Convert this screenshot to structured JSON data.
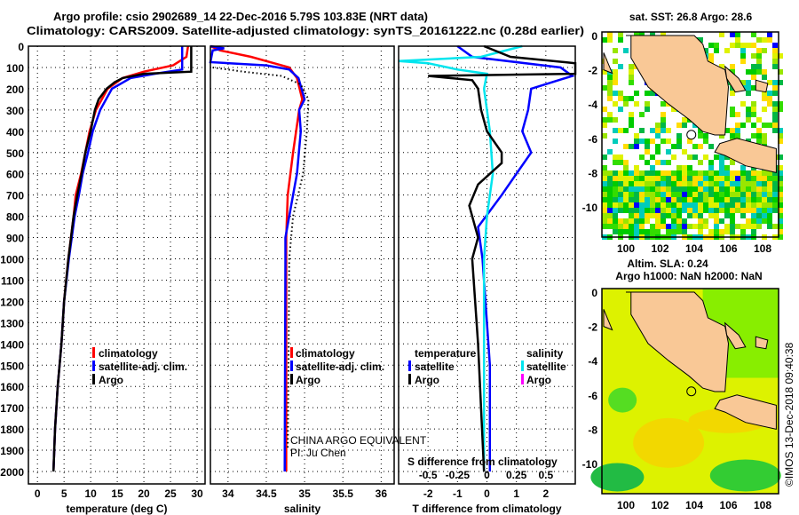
{
  "header": {
    "title_line1": "Argo profile: csio 2902689_14 22-Dec-2016 5.79S 103.83E (NRT data)",
    "title_line2": "Climatology: CARS2009. Satellite-adjusted climatology: synTS_20161222.nc (0.28d earlier)"
  },
  "colors": {
    "climatology": "#ff0000",
    "satellite": "#0000ff",
    "argo": "#000000",
    "sal_satellite": "#00e5ee",
    "sal_argo": "#ff00ff",
    "land": "#f9c896"
  },
  "depth_ticks": [
    "0",
    "100",
    "200",
    "300",
    "400",
    "500",
    "600",
    "700",
    "800",
    "900",
    "1000",
    "1100",
    "1200",
    "1300",
    "1400",
    "1500",
    "1600",
    "1700",
    "1800",
    "1900",
    "2000"
  ],
  "chart_data": [
    {
      "type": "line",
      "xlabel": "temperature (deg C)",
      "ylabel": "depth",
      "xlim": [
        -1.7,
        31.5
      ],
      "ylim": [
        2100,
        0
      ],
      "xticks": [
        "0",
        "5",
        "10",
        "15",
        "20",
        "25",
        "30"
      ],
      "legend": [
        "climatology",
        "satellite-adj. clim.",
        "Argo"
      ],
      "series": [
        {
          "name": "climatology",
          "color": "#ff0000",
          "depth": [
            0,
            50,
            90,
            120,
            150,
            200,
            300,
            400,
            500,
            600,
            700,
            800,
            1000,
            1200,
            1400,
            1600,
            1800,
            2000
          ],
          "values": [
            28.3,
            28,
            25.5,
            20,
            16,
            13.2,
            11,
            9.8,
            9,
            8.2,
            7.2,
            6.8,
            5.8,
            5,
            4.5,
            3.8,
            3.3,
            3
          ]
        },
        {
          "name": "satellite-adj. clim.",
          "color": "#0000ff",
          "depth": [
            0,
            110,
            130,
            150,
            200,
            300,
            400,
            500,
            600,
            700,
            800,
            1000,
            1200,
            1400,
            1600,
            1800,
            2000
          ],
          "values": [
            27.2,
            27.2,
            22,
            17.5,
            14,
            11.8,
            10.4,
            9.5,
            8.5,
            7.8,
            7,
            5.9,
            5,
            4.5,
            3.8,
            3.3,
            3
          ]
        },
        {
          "name": "Argo",
          "color": "#000000",
          "depth": [
            0,
            120,
            130,
            150,
            170,
            200,
            250,
            300,
            400,
            500,
            600,
            700,
            800,
            900,
            1000,
            1200,
            1400,
            1600,
            1800,
            2000
          ],
          "values": [
            28.9,
            28.9,
            20,
            16,
            14.5,
            13,
            11.5,
            10.8,
            10,
            9,
            8.3,
            7.5,
            6.8,
            6.3,
            5.8,
            5,
            4.5,
            3.8,
            3.3,
            3
          ]
        }
      ]
    },
    {
      "type": "line",
      "xlabel": "salinity",
      "xlim": [
        33.77,
        36.17
      ],
      "ylim": [
        2100,
        0
      ],
      "xticks": [
        "34",
        "34.5",
        "35",
        "35.5",
        "36"
      ],
      "legend": [
        "climatology",
        "satellite-adj. clim.",
        "Argo"
      ],
      "annotation_line1": "CHINA ARGO EQUIVALENT",
      "annotation_line2": "PI: Ju Chen",
      "series": [
        {
          "name": "climatology",
          "color": "#ff0000",
          "depth": [
            0,
            20,
            50,
            80,
            100,
            150,
            250,
            300,
            500,
            700,
            900,
            1000,
            2000
          ],
          "values": [
            33.77,
            33.9,
            34.3,
            34.6,
            34.8,
            34.9,
            34.97,
            34.93,
            34.85,
            34.78,
            34.76,
            34.76,
            34.76
          ]
        },
        {
          "name": "satellite-adj. clim.",
          "color": "#0000ff",
          "depth": [
            0,
            10,
            20,
            75,
            90,
            110,
            150,
            250,
            300,
            400,
            600,
            700,
            900,
            1000,
            2000
          ],
          "values": [
            33.77,
            33.95,
            33.8,
            33.77,
            34.5,
            34.8,
            34.92,
            35,
            34.93,
            34.95,
            34.9,
            34.85,
            34.75,
            34.75,
            34.74
          ]
        },
        {
          "name": "Argo",
          "color": "#000000",
          "dashed": true,
          "depth": [
            100,
            120,
            140,
            180,
            250,
            400,
            600,
            800,
            1000,
            1500,
            1900
          ],
          "values": [
            33.8,
            34.2,
            34.7,
            34.95,
            35.05,
            35.03,
            34.98,
            34.85,
            34.8,
            34.79,
            34.78
          ]
        }
      ]
    },
    {
      "type": "line",
      "xlabel": "T difference from climatology",
      "xlabel2": "S difference from climatology",
      "xlim": [
        -3,
        3
      ],
      "ylim": [
        2100,
        0
      ],
      "xticks": [
        "-2",
        "-1",
        "0",
        "1",
        "2"
      ],
      "xticks_s": [
        "-0.5",
        "-0.25",
        "0",
        "0.25",
        "0.5"
      ],
      "legend_t_title": "temperature",
      "legend_s_title": "salinity",
      "legend": [
        "satellite",
        "Argo"
      ],
      "series": [
        {
          "name": "T satellite",
          "color": "#0000ff",
          "depth": [
            0,
            50,
            100,
            140,
            200,
            300,
            400,
            500,
            600,
            700,
            850,
            1000,
            1500,
            2000
          ],
          "values": [
            -1,
            -0.5,
            2.5,
            2.9,
            1.5,
            1.4,
            1.2,
            1.5,
            1.0,
            0.5,
            -0.3,
            -0.15,
            0.1,
            0.1
          ]
        },
        {
          "name": "S satellite",
          "color": "#00e5ee",
          "depth": [
            0,
            50,
            70,
            80,
            110,
            130,
            200,
            400,
            600,
            800,
            1000,
            2000
          ],
          "values": [
            1.2,
            -0.2,
            -3,
            -2,
            -1,
            0,
            -0.1,
            0.1,
            0.2,
            0,
            -0.1,
            -0.1
          ]
        },
        {
          "name": "T Argo",
          "color": "#000000",
          "depth": [
            0,
            50,
            80,
            130,
            140,
            160,
            200,
            300,
            400,
            500,
            550,
            650,
            750,
            900,
            1000,
            1400,
            2000
          ],
          "values": [
            -0.1,
            0.8,
            3,
            3,
            -2,
            -0.5,
            -0.3,
            -0.2,
            0,
            0.5,
            0.5,
            -0.3,
            -0.6,
            -0.3,
            -0.5,
            -0.3,
            -0.1
          ]
        }
      ]
    }
  ],
  "maps": {
    "sst_title": "sat. SST: 26.8 Argo: 28.6",
    "sla_title1": "Altim. SLA: 0.24",
    "sla_title2": "Argo h1000: NaN h2000: NaN",
    "lat_ticks": [
      "0",
      "-2",
      "-4",
      "-6",
      "-8",
      "-10"
    ],
    "lon_ticks": [
      "100",
      "102",
      "104",
      "106",
      "108"
    ],
    "float_lon": 103.83,
    "float_lat": -5.79
  },
  "credit": "©IMOS 13-Dec-2018 09:40:38"
}
